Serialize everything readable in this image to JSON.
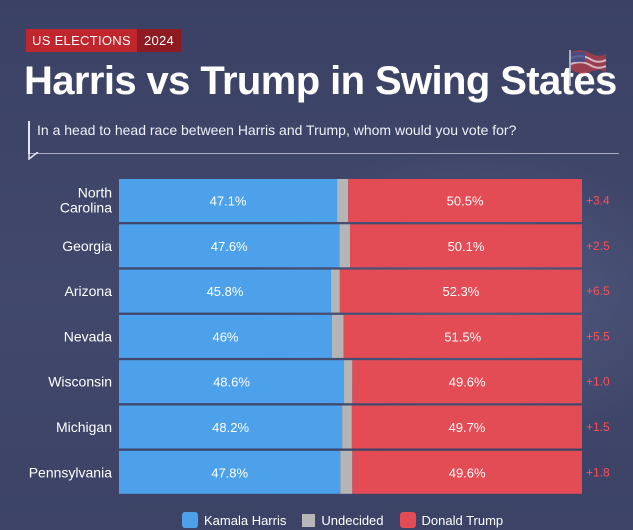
{
  "header": {
    "badge_left": "US ELECTIONS",
    "badge_right": "2024",
    "title": "Harris vs Trump in Swing States",
    "subtitle": "In a head to head race between Harris and Trump, whom would you vote for?"
  },
  "legend": {
    "harris": "Kamala Harris",
    "undecided": "Undecided",
    "trump": "Donald Trump"
  },
  "colors": {
    "harris": "#4da1ea",
    "trump": "#e34b55",
    "undecided": "#b5b5b5",
    "margin": "#ff4e58",
    "badge": "#c0262d"
  },
  "chart_data": {
    "type": "bar",
    "orientation": "horizontal",
    "stacked": true,
    "categories": [
      "North Carolina",
      "Georgia",
      "Arizona",
      "Nevada",
      "Wisconsin",
      "Michigan",
      "Pennsylvania"
    ],
    "category_display": [
      [
        "North",
        "Carolina"
      ],
      [
        "Georgia"
      ],
      [
        "Arizona"
      ],
      [
        "Nevada"
      ],
      [
        "Wisconsin"
      ],
      [
        "Michigan"
      ],
      [
        "Pennsylvania"
      ]
    ],
    "series": [
      {
        "name": "Kamala Harris",
        "values": [
          47.1,
          47.6,
          45.8,
          46,
          48.6,
          48.2,
          47.8
        ],
        "labels": [
          "47.1%",
          "47.6%",
          "45.8%",
          "46%",
          "48.6%",
          "48.2%",
          "47.8%"
        ]
      },
      {
        "name": "Undecided",
        "values": [
          2.4,
          2.3,
          1.9,
          2.5,
          1.8,
          2.1,
          2.6
        ]
      },
      {
        "name": "Donald Trump",
        "values": [
          50.5,
          50.1,
          52.3,
          51.5,
          49.6,
          49.7,
          49.6
        ],
        "labels": [
          "50.5%",
          "50.1%",
          "52.3%",
          "51.5%",
          "49.6%",
          "49.7%",
          "49.6%"
        ]
      }
    ],
    "margins": [
      "+3.4",
      "+2.5",
      "+6.5",
      "+5.5",
      "+1.0",
      "+1.5",
      "+1.8"
    ],
    "xlim": [
      0,
      100
    ],
    "legend_position": "bottom"
  }
}
